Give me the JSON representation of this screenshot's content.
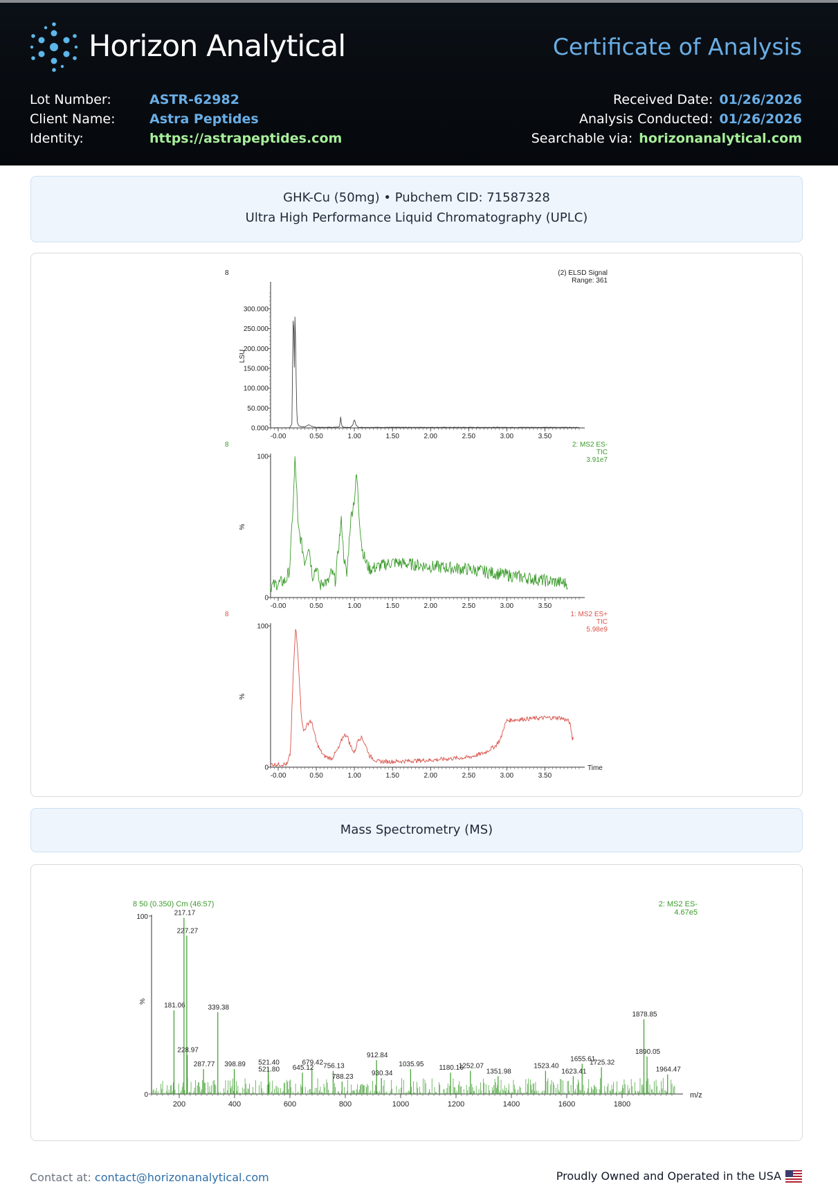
{
  "header": {
    "brand": "Horizon Analytical",
    "document_title": "Certificate of Analysis",
    "left_fields": [
      {
        "label": "Lot Number:",
        "value": "ASTR-62982"
      },
      {
        "label": "Client Name:",
        "value": "Astra Peptides"
      },
      {
        "label": "Identity:",
        "value": "https://astrapeptides.com"
      }
    ],
    "right_fields": [
      {
        "label": "Received Date:",
        "value": "01/26/2026"
      },
      {
        "label": "Analysis Conducted:",
        "value": "01/26/2026"
      },
      {
        "label": "Searchable via:",
        "value": "horizonanalytical.com"
      }
    ]
  },
  "sample": {
    "line1": "GHK-Cu (50mg) • Pubchem CID: 71587328",
    "line2": "Ultra High Performance Liquid Chromatography (UPLC)"
  },
  "ms_section": {
    "title": "Mass Spectrometry (MS)"
  },
  "footer": {
    "contact_prefix": "Contact at: ",
    "contact_email": "contact@horizonanalytical.com",
    "tagline": "Proudly Owned and Operated in the USA",
    "flag_icon": "us-flag-icon"
  },
  "colors": {
    "header_bg": "#0b1016",
    "accent_blue": "#6aaee6",
    "accent_green": "#a7ef9a",
    "trace_green": "#3a9a2a",
    "trace_red": "#d9524a"
  },
  "chart_data": [
    {
      "type": "line",
      "panel_id": "8",
      "annotation": [
        "(2) ELSD Signal",
        "Range: 361"
      ],
      "ylabel": "LSU",
      "yticks": [
        "0.000",
        "50.000",
        "100.000",
        "150.000",
        "200.000",
        "250.000",
        "300.000"
      ],
      "ylim": [
        0,
        361
      ],
      "xticks": [
        "-0.00",
        "0.50",
        "1.00",
        "1.50",
        "2.00",
        "2.50",
        "3.00",
        "3.50"
      ],
      "xlim": [
        -0.1,
        3.95
      ],
      "color": "#444444",
      "series": [
        {
          "x": [
            -0.1,
            0.1,
            0.15,
            0.18,
            0.2,
            0.21,
            0.22,
            0.23,
            0.24,
            0.25,
            0.27,
            0.3,
            0.35,
            0.4,
            0.45,
            0.5,
            0.7,
            0.8,
            0.81,
            0.82,
            0.83,
            0.84,
            0.86,
            0.95,
            0.98,
            1.0,
            1.02,
            1.05,
            1.5,
            2.0,
            2.5,
            3.0,
            3.5,
            3.95
          ],
          "y": [
            0,
            0,
            0,
            10,
            335,
            120,
            280,
            210,
            60,
            15,
            5,
            3,
            2,
            8,
            3,
            1,
            1,
            2,
            8,
            28,
            10,
            3,
            1,
            1,
            8,
            22,
            8,
            1,
            1,
            1,
            1,
            1,
            1,
            1
          ]
        }
      ]
    },
    {
      "type": "line",
      "panel_id": "8",
      "annotation": [
        "2: MS2 ES-",
        "TIC",
        "3.91e7"
      ],
      "ylabel": "%",
      "yticks": [
        "0",
        "100"
      ],
      "ylim": [
        0,
        100
      ],
      "xticks": [
        "-0.00",
        "0.50",
        "1.00",
        "1.50",
        "2.00",
        "2.50",
        "3.00",
        "3.50"
      ],
      "xlim": [
        -0.1,
        3.95
      ],
      "color": "#3a9a2a",
      "series": [
        {
          "x": [
            -0.1,
            0.0,
            0.1,
            0.15,
            0.2,
            0.22,
            0.24,
            0.26,
            0.3,
            0.35,
            0.4,
            0.45,
            0.5,
            0.55,
            0.6,
            0.65,
            0.7,
            0.75,
            0.8,
            0.83,
            0.86,
            0.9,
            0.95,
            1.0,
            1.03,
            1.06,
            1.1,
            1.15,
            1.2,
            1.5,
            2.0,
            2.5,
            3.0,
            3.5,
            3.8
          ],
          "y": [
            8,
            10,
            12,
            20,
            70,
            98,
            80,
            50,
            40,
            25,
            38,
            15,
            22,
            8,
            12,
            10,
            18,
            12,
            40,
            55,
            30,
            15,
            55,
            70,
            88,
            60,
            35,
            25,
            20,
            25,
            22,
            20,
            16,
            12,
            10
          ]
        }
      ]
    },
    {
      "type": "line",
      "panel_id": "8",
      "annotation": [
        "1: MS2 ES+",
        "TIC",
        "5.98e9"
      ],
      "ylabel": "%",
      "yticks": [
        "0",
        "100"
      ],
      "ylim": [
        0,
        100
      ],
      "xticks": [
        "-0.00",
        "0.50",
        "1.00",
        "1.50",
        "2.00",
        "2.50",
        "3.00",
        "3.50"
      ],
      "xlim": [
        -0.1,
        3.95
      ],
      "xlabel": "Time",
      "color": "#d9524a",
      "series": [
        {
          "x": [
            -0.1,
            0.05,
            0.12,
            0.16,
            0.2,
            0.23,
            0.26,
            0.3,
            0.33,
            0.38,
            0.42,
            0.45,
            0.5,
            0.55,
            0.6,
            0.7,
            0.8,
            0.85,
            0.9,
            0.95,
            1.0,
            1.05,
            1.1,
            1.15,
            1.2,
            1.3,
            1.5,
            2.0,
            2.5,
            2.7,
            2.85,
            2.92,
            2.96,
            3.0,
            3.2,
            3.5,
            3.7,
            3.8,
            3.82,
            3.84,
            3.86,
            3.88
          ],
          "y": [
            2,
            2,
            2,
            10,
            70,
            99,
            80,
            40,
            25,
            30,
            33,
            30,
            18,
            12,
            8,
            6,
            14,
            22,
            23,
            15,
            10,
            20,
            21,
            15,
            8,
            4,
            4,
            5,
            7,
            10,
            15,
            20,
            28,
            33,
            34,
            35,
            35,
            33,
            32,
            28,
            20,
            22
          ]
        }
      ]
    },
    {
      "type": "bar",
      "title": "8 50 (0.350) Cm (46:57)",
      "annotation": [
        "2: MS2 ES-",
        "4.67e5"
      ],
      "ylabel": "%",
      "xlabel": "m/z",
      "yticks": [
        "0",
        "100"
      ],
      "ylim": [
        0,
        100
      ],
      "xticks": [
        "200",
        "400",
        "600",
        "800",
        "1000",
        "1200",
        "1400",
        "1600",
        "1800"
      ],
      "xlim": [
        100,
        2000
      ],
      "color": "#3a9a2a",
      "peaks": [
        {
          "mz": 181.06,
          "intensity": 47,
          "label": "181.06"
        },
        {
          "mz": 217.17,
          "intensity": 99,
          "label": "217.17"
        },
        {
          "mz": 227.27,
          "intensity": 89,
          "label": "227.27"
        },
        {
          "mz": 228.97,
          "intensity": 22,
          "label": "228.97"
        },
        {
          "mz": 287.77,
          "intensity": 14,
          "label": "287.77"
        },
        {
          "mz": 339.38,
          "intensity": 46,
          "label": "339.38"
        },
        {
          "mz": 398.89,
          "intensity": 14,
          "label": "398.89"
        },
        {
          "mz": 521.4,
          "intensity": 15,
          "label": "521.40"
        },
        {
          "mz": 521.8,
          "intensity": 11,
          "label": "521.80"
        },
        {
          "mz": 645.12,
          "intensity": 12,
          "label": "645.12"
        },
        {
          "mz": 679.42,
          "intensity": 15,
          "label": "679.42"
        },
        {
          "mz": 756.13,
          "intensity": 13,
          "label": "756.13"
        },
        {
          "mz": 788.23,
          "intensity": 7,
          "label": "788.23"
        },
        {
          "mz": 912.84,
          "intensity": 19,
          "label": "912.84"
        },
        {
          "mz": 930.34,
          "intensity": 9,
          "label": "930.34"
        },
        {
          "mz": 1035.95,
          "intensity": 14,
          "label": "1035.95"
        },
        {
          "mz": 1180.16,
          "intensity": 12,
          "label": "1180.16"
        },
        {
          "mz": 1252.07,
          "intensity": 13,
          "label": "1252.07"
        },
        {
          "mz": 1351.98,
          "intensity": 10,
          "label": "1351.98"
        },
        {
          "mz": 1523.4,
          "intensity": 13,
          "label": "1523.40"
        },
        {
          "mz": 1623.41,
          "intensity": 10,
          "label": "1623.41"
        },
        {
          "mz": 1655.61,
          "intensity": 17,
          "label": "1655.61"
        },
        {
          "mz": 1725.32,
          "intensity": 15,
          "label": "1725.32"
        },
        {
          "mz": 1878.85,
          "intensity": 42,
          "label": "1878.85"
        },
        {
          "mz": 1890.05,
          "intensity": 21,
          "label": "1890.05"
        },
        {
          "mz": 1964.47,
          "intensity": 11,
          "label": "1964.47"
        }
      ]
    }
  ]
}
